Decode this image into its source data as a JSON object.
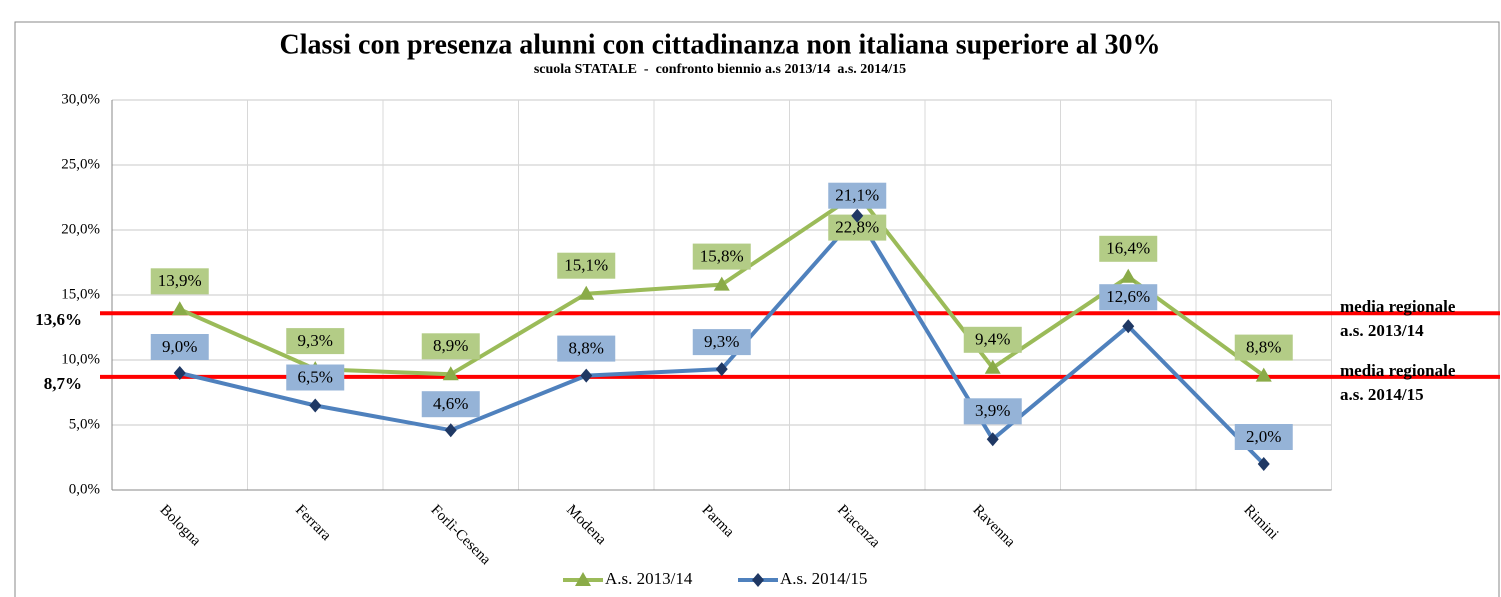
{
  "chart_data": {
    "type": "line",
    "title": "Classi con presenza alunni con cittadinanza non italiana superiore al 30%",
    "subtitle": "scuola STATALE  -  confronto biennio a.s 2013/14  a.s. 2014/15",
    "categories": [
      "Bologna",
      "Ferrara",
      "Forlì-Cesena",
      "Modena",
      "Parma",
      "Piacenza",
      "Ravenna",
      null,
      "Rimini"
    ],
    "series": [
      {
        "name": "A.s. 2013/14",
        "color": "#9bbb59",
        "marker": "triangle",
        "marker_color": "#8aab48",
        "label_color": "#b3cc86",
        "values": [
          13.9,
          9.3,
          8.9,
          15.1,
          15.8,
          22.8,
          9.4,
          16.4,
          8.8
        ],
        "value_labels": [
          "13,9%",
          "9,3%",
          "8,9%",
          "15,1%",
          "15,8%",
          "22,8%",
          "9,4%",
          "16,4%",
          "8,8%"
        ]
      },
      {
        "name": "A.s. 2014/15",
        "color": "#4f81bd",
        "marker": "diamond",
        "marker_color": "#1f3864",
        "label_color": "#95b3d7",
        "values": [
          9.0,
          6.5,
          4.6,
          8.8,
          9.3,
          21.1,
          3.9,
          12.6,
          2.0
        ],
        "value_labels": [
          "9,0%",
          "6,5%",
          "4,6%",
          "8,8%",
          "9,3%",
          "21,1%",
          "3,9%",
          "12,6%",
          "2,0%"
        ]
      }
    ],
    "ylim": [
      0,
      30
    ],
    "yticks": [
      {
        "value": 0,
        "label": "0,0%"
      },
      {
        "value": 5,
        "label": "5,0%"
      },
      {
        "value": 10,
        "label": "10,0%"
      },
      {
        "value": 15,
        "label": "15,0%"
      },
      {
        "value": 20,
        "label": "20,0%"
      },
      {
        "value": 25,
        "label": "25,0%"
      },
      {
        "value": 30,
        "label": "30,0%"
      }
    ],
    "grid": true,
    "reference_lines": [
      {
        "value": 13.6,
        "label": "13,6%",
        "text": [
          "media regionale",
          "a.s. 2013/14"
        ],
        "color": "#ff0000"
      },
      {
        "value": 8.7,
        "label": "8,7%",
        "text": [
          "media regionale",
          "a.s. 2014/15"
        ],
        "color": "#ff0000"
      }
    ],
    "legend": "bottom"
  }
}
